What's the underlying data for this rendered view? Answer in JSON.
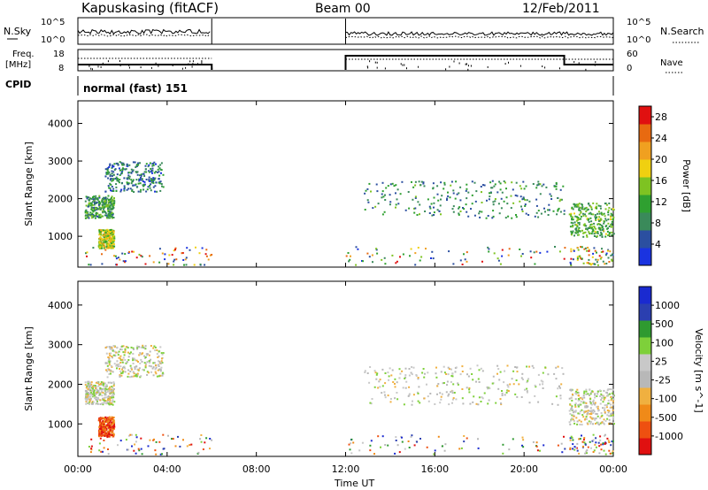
{
  "header": {
    "station": "Kapuskasing (fitACF)",
    "beam": "Beam 00",
    "date": "12/Feb/2011"
  },
  "top_panels": {
    "nsky_label": "N.Sky",
    "nsky_ticks": [
      "10^5",
      "10^0"
    ],
    "nsearch_label": "N.Search",
    "nsearch_ticks": [
      "10^5",
      "10^0"
    ],
    "freq_label": "Freq.",
    "freq_unit": "[MHz]",
    "freq_ticks": [
      "18",
      "8"
    ],
    "nave_label": "Nave",
    "nave_ticks": [
      "60",
      "0"
    ],
    "cpid_label": "CPID",
    "cpid_text": "normal (fast) 151"
  },
  "colors": {
    "power": [
      "#1a33e0",
      "#2b4fa0",
      "#3a8a5a",
      "#2fa030",
      "#7ec322",
      "#f0d010",
      "#f0a020",
      "#e86a10",
      "#e01010"
    ],
    "velocity": [
      "#e01010",
      "#ee5010",
      "#f08a18",
      "#f0b040",
      "#b8b8b8",
      "#c8c8c8",
      "#7ed03a",
      "#2f9a30",
      "#2b3fb0",
      "#1a2ad0"
    ]
  },
  "chart_data": [
    {
      "type": "heatmap",
      "title": "Power",
      "xlabel": "Time UT",
      "ylabel": "Slant Range [km]",
      "x_ticks": [
        "00:00",
        "04:00",
        "08:00",
        "12:00",
        "16:00",
        "20:00",
        "00:00"
      ],
      "x_range_hours": [
        0,
        24
      ],
      "y_ticks": [
        1000,
        2000,
        3000,
        4000
      ],
      "ylim": [
        180,
        4600
      ],
      "colorbar_label": "Power [dB]",
      "colorbar_ticks": [
        4,
        8,
        12,
        16,
        20,
        24,
        28
      ],
      "colorbar_range": [
        0,
        30
      ],
      "regions": [
        {
          "t0": 0.3,
          "t1": 1.6,
          "r0": 1500,
          "r1": 2100,
          "level": 0.35
        },
        {
          "t0": 1.2,
          "t1": 3.8,
          "r0": 2200,
          "r1": 3000,
          "level": 0.25
        },
        {
          "t0": 0.9,
          "t1": 1.6,
          "r0": 700,
          "r1": 1200,
          "level": 0.55
        },
        {
          "t0": 12.8,
          "t1": 21.8,
          "r0": 1500,
          "r1": 2500,
          "level": 0.3
        },
        {
          "t0": 22.0,
          "t1": 24.0,
          "r0": 1000,
          "r1": 1900,
          "level": 0.4
        }
      ]
    },
    {
      "type": "heatmap",
      "title": "Velocity",
      "xlabel": "Time UT",
      "ylabel": "Slant Range [km]",
      "x_ticks": [
        "00:00",
        "04:00",
        "08:00",
        "12:00",
        "16:00",
        "20:00",
        "00:00"
      ],
      "x_range_hours": [
        0,
        24
      ],
      "y_ticks": [
        1000,
        2000,
        3000,
        4000
      ],
      "ylim": [
        180,
        4600
      ],
      "colorbar_label": "Velocity [m s^-1]",
      "colorbar_ticks": [
        "1000",
        "500",
        "100",
        "25",
        "-25",
        "-100",
        "-500",
        "-1000"
      ],
      "colorbar_range": [
        -1000,
        1000
      ],
      "regions": [
        {
          "t0": 0.3,
          "t1": 1.6,
          "r0": 1500,
          "r1": 2100,
          "level": 0.5
        },
        {
          "t0": 1.2,
          "t1": 3.8,
          "r0": 2200,
          "r1": 3000,
          "level": 0.5
        },
        {
          "t0": 0.9,
          "t1": 1.6,
          "r0": 700,
          "r1": 1200,
          "level": 0.15
        },
        {
          "t0": 12.8,
          "t1": 21.8,
          "r0": 1500,
          "r1": 2500,
          "level": 0.5
        },
        {
          "t0": 22.0,
          "t1": 24.0,
          "r0": 1000,
          "r1": 1900,
          "level": 0.5
        }
      ]
    }
  ]
}
